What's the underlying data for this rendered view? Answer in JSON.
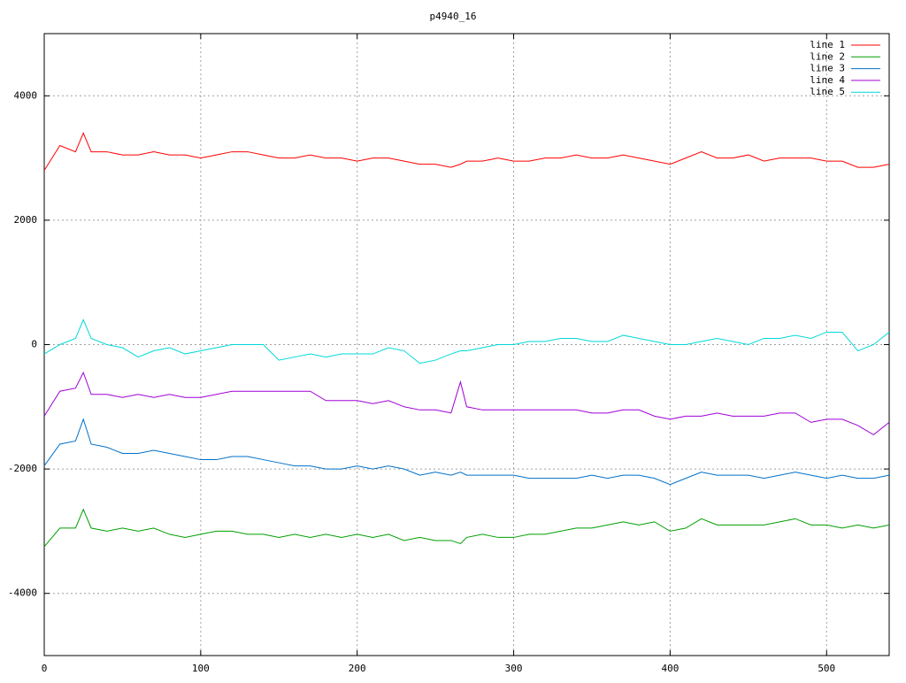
{
  "chart_data": {
    "type": "line",
    "title": "p4940_16",
    "x": [
      0,
      10,
      20,
      25,
      30,
      40,
      50,
      60,
      70,
      80,
      90,
      100,
      110,
      120,
      130,
      140,
      150,
      160,
      170,
      180,
      190,
      200,
      210,
      220,
      230,
      240,
      250,
      260,
      266,
      270,
      280,
      290,
      300,
      310,
      320,
      330,
      340,
      350,
      360,
      370,
      380,
      390,
      400,
      410,
      420,
      430,
      440,
      450,
      460,
      470,
      480,
      490,
      500,
      510,
      520,
      530,
      540
    ],
    "series": [
      {
        "name": "line 1",
        "color": "#ff0000",
        "values": [
          2800,
          3200,
          3100,
          3400,
          3100,
          3100,
          3050,
          3050,
          3100,
          3050,
          3050,
          3000,
          3050,
          3100,
          3100,
          3050,
          3000,
          3000,
          3050,
          3000,
          3000,
          2950,
          3000,
          3000,
          2950,
          2900,
          2900,
          2850,
          2900,
          2950,
          2950,
          3000,
          2950,
          2950,
          3000,
          3000,
          3050,
          3000,
          3000,
          3050,
          3000,
          2950,
          2900,
          3000,
          3100,
          3000,
          3000,
          3050,
          2950,
          3000,
          3000,
          3000,
          2950,
          2950,
          2850,
          2850,
          2900
        ]
      },
      {
        "name": "line 2",
        "color": "#00a000",
        "values": [
          -3250,
          -2950,
          -2950,
          -2650,
          -2950,
          -3000,
          -2950,
          -3000,
          -2950,
          -3050,
          -3100,
          -3050,
          -3000,
          -3000,
          -3050,
          -3050,
          -3100,
          -3050,
          -3100,
          -3050,
          -3100,
          -3050,
          -3100,
          -3050,
          -3150,
          -3100,
          -3150,
          -3150,
          -3200,
          -3100,
          -3050,
          -3100,
          -3100,
          -3050,
          -3050,
          -3000,
          -2950,
          -2950,
          -2900,
          -2850,
          -2900,
          -2850,
          -3000,
          -2950,
          -2800,
          -2900,
          -2900,
          -2900,
          -2900,
          -2850,
          -2800,
          -2900,
          -2900,
          -2950,
          -2900,
          -2950,
          -2900
        ]
      },
      {
        "name": "line 3",
        "color": "#0070c8",
        "values": [
          -1950,
          -1600,
          -1550,
          -1200,
          -1600,
          -1650,
          -1750,
          -1750,
          -1700,
          -1750,
          -1800,
          -1850,
          -1850,
          -1800,
          -1800,
          -1850,
          -1900,
          -1950,
          -1950,
          -2000,
          -2000,
          -1950,
          -2000,
          -1950,
          -2000,
          -2100,
          -2050,
          -2100,
          -2050,
          -2100,
          -2100,
          -2100,
          -2100,
          -2150,
          -2150,
          -2150,
          -2150,
          -2100,
          -2150,
          -2100,
          -2100,
          -2150,
          -2250,
          -2150,
          -2050,
          -2100,
          -2100,
          -2100,
          -2150,
          -2100,
          -2050,
          -2100,
          -2150,
          -2100,
          -2150,
          -2150,
          -2100
        ]
      },
      {
        "name": "line 4",
        "color": "#a000d8",
        "values": [
          -1150,
          -750,
          -700,
          -450,
          -800,
          -800,
          -850,
          -800,
          -850,
          -800,
          -850,
          -850,
          -800,
          -750,
          -750,
          -750,
          -750,
          -750,
          -750,
          -900,
          -900,
          -900,
          -950,
          -900,
          -1000,
          -1050,
          -1050,
          -1100,
          -600,
          -1000,
          -1050,
          -1050,
          -1050,
          -1050,
          -1050,
          -1050,
          -1050,
          -1100,
          -1100,
          -1050,
          -1050,
          -1150,
          -1200,
          -1150,
          -1150,
          -1100,
          -1150,
          -1150,
          -1150,
          -1100,
          -1100,
          -1250,
          -1200,
          -1200,
          -1300,
          -1450,
          -1250
        ]
      },
      {
        "name": "line 5",
        "color": "#00d8d8",
        "values": [
          -150,
          0,
          100,
          400,
          100,
          0,
          -50,
          -200,
          -100,
          -50,
          -150,
          -100,
          -50,
          0,
          0,
          0,
          -250,
          -200,
          -150,
          -200,
          -150,
          -150,
          -150,
          -50,
          -100,
          -300,
          -250,
          -150,
          -100,
          -100,
          -50,
          0,
          0,
          50,
          50,
          100,
          100,
          50,
          50,
          150,
          100,
          50,
          0,
          0,
          50,
          100,
          50,
          0,
          100,
          100,
          150,
          100,
          200,
          200,
          -100,
          0,
          200
        ]
      }
    ],
    "xlim": [
      0,
      540
    ],
    "ylim": [
      -5000,
      5000
    ],
    "xticks": [
      0,
      100,
      200,
      300,
      400,
      500
    ],
    "yticks": [
      -4000,
      -2000,
      0,
      2000,
      4000
    ],
    "grid": true,
    "legend": "top-right"
  }
}
